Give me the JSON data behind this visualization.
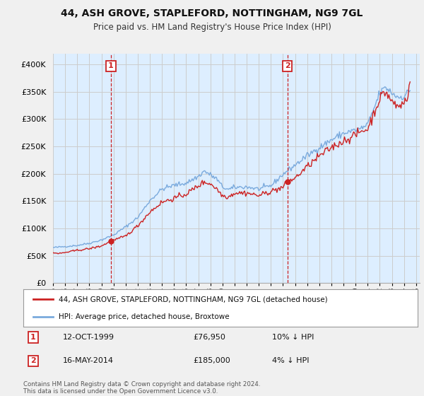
{
  "title": "44, ASH GROVE, STAPLEFORD, NOTTINGHAM, NG9 7GL",
  "subtitle": "Price paid vs. HM Land Registry's House Price Index (HPI)",
  "ylim": [
    0,
    420000
  ],
  "yticks": [
    0,
    50000,
    100000,
    150000,
    200000,
    250000,
    300000,
    350000,
    400000
  ],
  "hpi_color": "#7aaadd",
  "price_color": "#cc2222",
  "marker_color": "#cc2222",
  "shade_color": "#ddeeff",
  "annotation1_label": "1",
  "annotation1_year": 1999.79,
  "annotation1_value": 76950,
  "annotation1_date": "12-OCT-1999",
  "annotation1_price": "£76,950",
  "annotation1_hpi": "10% ↓ HPI",
  "annotation2_label": "2",
  "annotation2_year": 2014.37,
  "annotation2_value": 185000,
  "annotation2_date": "16-MAY-2014",
  "annotation2_price": "£185,000",
  "annotation2_hpi": "4% ↓ HPI",
  "legend_line1": "44, ASH GROVE, STAPLEFORD, NOTTINGHAM, NG9 7GL (detached house)",
  "legend_line2": "HPI: Average price, detached house, Broxtowe",
  "footer": "Contains HM Land Registry data © Crown copyright and database right 2024.\nThis data is licensed under the Open Government Licence v3.0.",
  "bg_color": "#f0f0f0",
  "plot_bg_color": "#ddeeff",
  "grid_color": "#cccccc",
  "xlim_start": 1995.0,
  "xlim_end": 2025.3
}
